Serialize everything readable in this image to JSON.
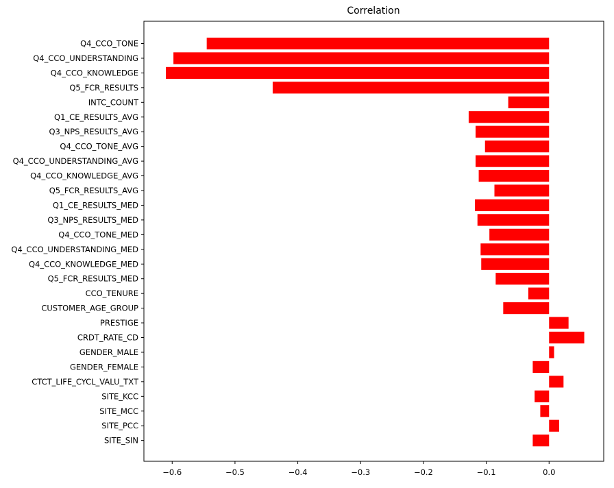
{
  "chart_data": {
    "type": "bar",
    "orientation": "horizontal",
    "title": "Correlation",
    "xlabel": "",
    "ylabel": "",
    "xlim": [
      -0.645,
      0.087
    ],
    "xticks": [
      -0.6,
      -0.5,
      -0.4,
      -0.3,
      -0.2,
      -0.1,
      0.0
    ],
    "xtick_labels": [
      "−0.6",
      "−0.5",
      "−0.4",
      "−0.3",
      "−0.2",
      "−0.1",
      "0.0"
    ],
    "grid": false,
    "legend": "none",
    "bar_color": "#ff0000",
    "categories": [
      "Q4_CCO_TONE",
      "Q4_CCO_UNDERSTANDING",
      "Q4_CCO_KNOWLEDGE",
      "Q5_FCR_RESULTS",
      "INTC_COUNT",
      "Q1_CE_RESULTS_AVG",
      "Q3_NPS_RESULTS_AVG",
      "Q4_CCO_TONE_AVG",
      "Q4_CCO_UNDERSTANDING_AVG",
      "Q4_CCO_KNOWLEDGE_AVG",
      "Q5_FCR_RESULTS_AVG",
      "Q1_CE_RESULTS_MED",
      "Q3_NPS_RESULTS_MED",
      "Q4_CCO_TONE_MED",
      "Q4_CCO_UNDERSTANDING_MED",
      "Q4_CCO_KNOWLEDGE_MED",
      "Q5_FCR_RESULTS_MED",
      "CCO_TENURE",
      "CUSTOMER_AGE_GROUP",
      "PRESTIGE",
      "CRDT_RATE_CD",
      "GENDER_MALE",
      "GENDER_FEMALE",
      "CTCT_LIFE_CYCL_VALU_TXT",
      "SITE_KCC",
      "SITE_MCC",
      "SITE_PCC",
      "SITE_SIN"
    ],
    "values": [
      -0.545,
      -0.598,
      -0.61,
      -0.44,
      -0.065,
      -0.128,
      -0.117,
      -0.102,
      -0.117,
      -0.112,
      -0.087,
      -0.118,
      -0.114,
      -0.095,
      -0.109,
      -0.108,
      -0.085,
      -0.033,
      -0.073,
      0.031,
      0.056,
      0.008,
      -0.026,
      0.023,
      -0.023,
      -0.014,
      0.016,
      -0.026
    ]
  }
}
